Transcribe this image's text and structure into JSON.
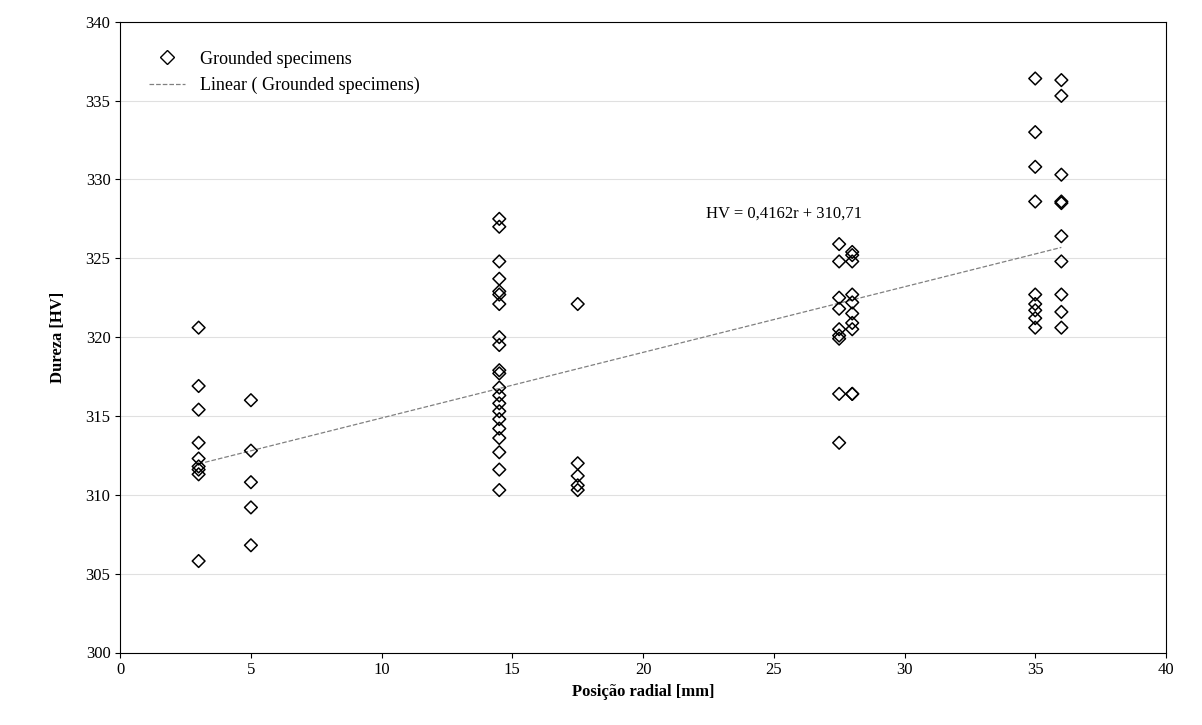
{
  "chart_data": {
    "type": "scatter",
    "x_label": "Posição radial [mm]",
    "y_label": "Dureza [HV]",
    "annotation": "HV = 0,4162r + 310,71",
    "xlim": [
      0,
      40
    ],
    "xticks": [
      0,
      5,
      10,
      15,
      20,
      25,
      30,
      35,
      40
    ],
    "ylim": [
      300,
      340
    ],
    "yticks": [
      300,
      305,
      310,
      315,
      320,
      325,
      330,
      335,
      340
    ],
    "grid": "y",
    "legend": "upper left",
    "series": [
      {
        "name": "Grounded specimens",
        "type": "scatter",
        "marker": "diamond",
        "color": "#000000",
        "x": [
          3,
          3,
          3,
          3,
          3,
          3,
          3,
          3,
          3,
          5,
          5,
          5,
          5,
          5,
          14.5,
          14.5,
          14.5,
          14.5,
          14.5,
          14.5,
          14.5,
          14.5,
          14.5,
          14.5,
          14.5,
          14.5,
          14.5,
          14.5,
          14.5,
          14.5,
          14.5,
          14.5,
          14.5,
          14.5,
          14.5,
          17.5,
          17.5,
          17.5,
          17.5,
          17.5,
          27.5,
          27.5,
          27.5,
          27.5,
          27.5,
          27.5,
          27.5,
          27.5,
          27.5,
          28,
          28,
          28,
          28,
          28,
          28,
          28,
          28,
          28,
          28,
          35,
          35,
          35,
          35,
          35,
          35,
          35,
          35,
          35,
          36,
          36,
          36,
          36,
          36,
          36,
          36,
          36,
          36,
          36
        ],
        "values": [
          320.6,
          316.9,
          315.4,
          313.3,
          312.3,
          311.8,
          311.6,
          311.3,
          305.8,
          316.0,
          312.8,
          310.8,
          309.2,
          306.8,
          327.5,
          327.0,
          324.8,
          323.7,
          322.9,
          322.7,
          322.1,
          320.0,
          319.5,
          317.9,
          317.7,
          316.8,
          316.3,
          315.8,
          315.3,
          314.8,
          314.2,
          313.6,
          312.7,
          311.6,
          310.3,
          322.1,
          312.0,
          311.2,
          310.6,
          310.3,
          325.9,
          324.8,
          322.5,
          321.8,
          320.5,
          320.1,
          319.9,
          316.4,
          313.3,
          325.4,
          325.2,
          324.8,
          322.7,
          322.2,
          321.5,
          320.9,
          320.5,
          316.4,
          316.4,
          336.4,
          333.0,
          330.8,
          328.6,
          322.7,
          322.1,
          321.7,
          321.2,
          320.6,
          336.3,
          335.3,
          330.3,
          328.6,
          328.5,
          326.4,
          324.8,
          322.7,
          321.6,
          320.6
        ]
      },
      {
        "name": "Linear ( Grounded specimens)",
        "type": "line",
        "line_style": "dashed",
        "color": "#808080",
        "x": [
          3,
          36
        ],
        "values": [
          311.96,
          325.69
        ]
      }
    ]
  }
}
